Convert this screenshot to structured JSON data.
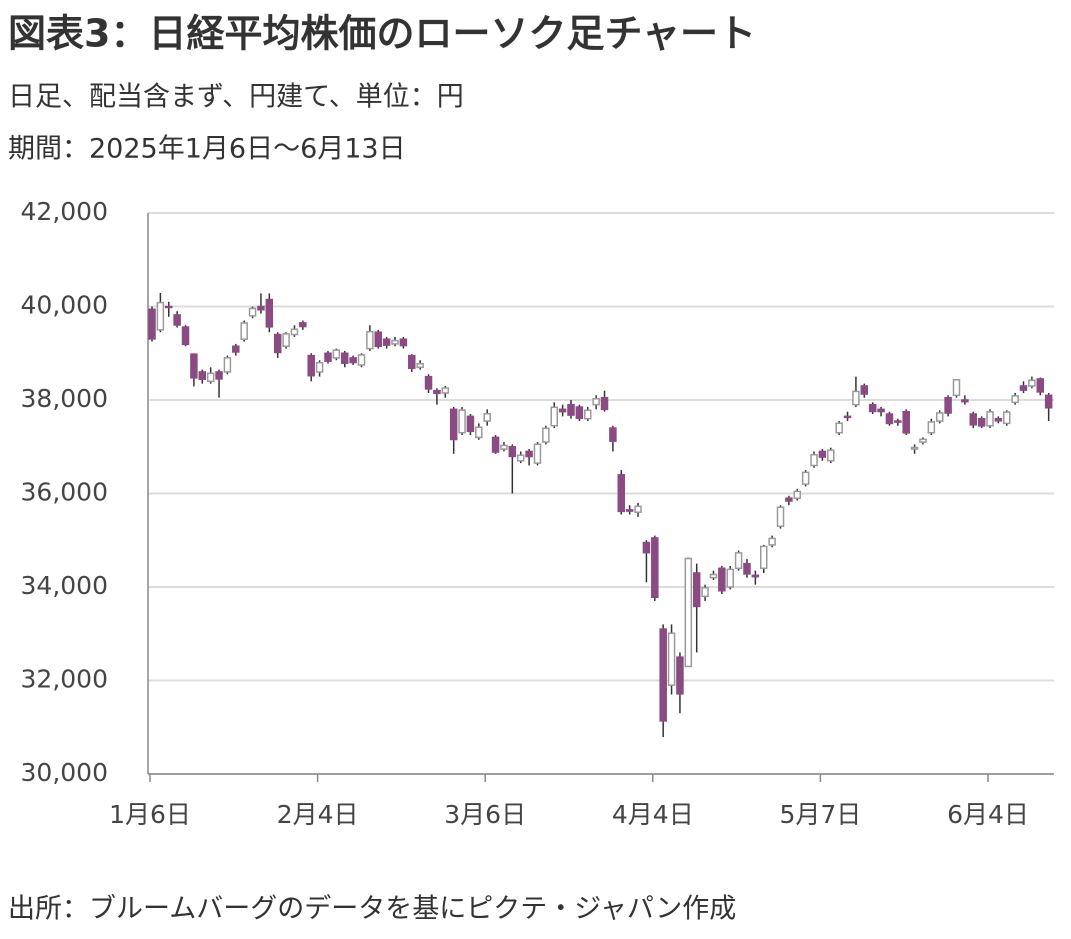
{
  "chart_data": {
    "type": "candlestick",
    "title": "図表3：日経平均株価のローソク足チャート",
    "subtitle": "日足、配当含まず、円建て、単位：円",
    "period": "期間：2025年1月6日～6月13日",
    "source": "出所：ブルームバーグのデータを基にピクテ・ジャパン作成",
    "categories": [
      "1月6日",
      null,
      null,
      null,
      null,
      null,
      null,
      null,
      null,
      null,
      null,
      null,
      null,
      null,
      null,
      null,
      null,
      null,
      null,
      null,
      "2月4日",
      null,
      null,
      null,
      null,
      null,
      null,
      null,
      null,
      null,
      null,
      null,
      null,
      null,
      null,
      null,
      null,
      null,
      null,
      null,
      "3月6日",
      null,
      null,
      null,
      null,
      null,
      null,
      null,
      null,
      null,
      null,
      null,
      null,
      null,
      null,
      null,
      null,
      null,
      null,
      null,
      "4月4日",
      null,
      null,
      null,
      null,
      null,
      null,
      null,
      null,
      null,
      null,
      null,
      null,
      null,
      null,
      null,
      null,
      null,
      null,
      null,
      "5月7日",
      null,
      null,
      null,
      null,
      null,
      null,
      null,
      null,
      null,
      null,
      null,
      null,
      null,
      null,
      null,
      null,
      null,
      null,
      null,
      "6月4日",
      null,
      null,
      null,
      null,
      null,
      null,
      null
    ],
    "open": [
      39940,
      39500,
      40000,
      39820,
      39560,
      38980,
      38600,
      38400,
      38600,
      38600,
      39150,
      39300,
      39800,
      40000,
      40150,
      39400,
      39150,
      39400,
      39650,
      38950,
      38600,
      39000,
      38900,
      39000,
      38900,
      38750,
      39100,
      39450,
      39300,
      39200,
      39300,
      38950,
      38700,
      38500,
      38200,
      38150,
      37800,
      37300,
      37650,
      37200,
      37550,
      37200,
      36950,
      37000,
      36700,
      36900,
      36650,
      37100,
      37450,
      37800,
      37900,
      37850,
      37600,
      37900,
      38050,
      37400,
      36400,
      35650,
      35600,
      34950,
      35050,
      33100,
      31900,
      32500,
      32300,
      34300,
      33800,
      34200,
      34400,
      34000,
      34400,
      34500,
      34250,
      34400,
      34900,
      35300,
      35900,
      35900,
      36200,
      36600,
      36900,
      36700,
      37300,
      37650,
      37900,
      38300,
      37900,
      37800,
      37700,
      37550,
      37750,
      36950,
      37100,
      37300,
      37550,
      38050,
      38100,
      38000,
      37700,
      37600,
      37450,
      37600,
      37500,
      37950,
      38300,
      38300,
      38450,
      38100
    ],
    "high": [
      40000,
      40290,
      40100,
      39900,
      39600,
      39000,
      38650,
      38700,
      38650,
      38950,
      39200,
      39700,
      40000,
      40280,
      40280,
      39450,
      39450,
      39600,
      39700,
      39000,
      38850,
      39050,
      39100,
      39050,
      38950,
      39000,
      39600,
      39500,
      39350,
      39350,
      39350,
      38980,
      38850,
      38550,
      38250,
      38300,
      37850,
      37850,
      37700,
      37500,
      37800,
      37250,
      37100,
      37050,
      36900,
      36950,
      37100,
      37450,
      37950,
      37900,
      38000,
      37900,
      37850,
      38100,
      38200,
      37450,
      36500,
      35750,
      35800,
      35000,
      35100,
      33200,
      33200,
      32600,
      34630,
      34500,
      34050,
      34350,
      34450,
      34450,
      34780,
      34600,
      34350,
      34900,
      35100,
      35750,
      35950,
      36100,
      36500,
      36900,
      36950,
      36980,
      37550,
      37750,
      38500,
      38350,
      37950,
      37850,
      37750,
      37600,
      37800,
      37050,
      37200,
      37600,
      37780,
      38100,
      38450,
      38100,
      37750,
      37650,
      37800,
      37650,
      37780,
      38150,
      38400,
      38500,
      38480,
      38150
    ],
    "low": [
      39250,
      39450,
      39780,
      39550,
      39150,
      38290,
      38350,
      38350,
      38050,
      38550,
      38950,
      39250,
      39750,
      39850,
      39450,
      38900,
      39100,
      39350,
      39500,
      38400,
      38500,
      38780,
      38850,
      38700,
      38750,
      38700,
      39050,
      39100,
      39100,
      39150,
      39100,
      38600,
      38650,
      38150,
      37900,
      38050,
      36850,
      37250,
      37250,
      37150,
      37450,
      36850,
      36900,
      36000,
      36650,
      36600,
      36600,
      37050,
      37400,
      37650,
      37600,
      37550,
      37550,
      37800,
      37750,
      36900,
      35550,
      35550,
      35500,
      34100,
      33700,
      30790,
      31700,
      31300,
      32300,
      32600,
      33700,
      34150,
      33850,
      33950,
      34350,
      34200,
      34050,
      34300,
      34850,
      35250,
      35750,
      35850,
      36150,
      36550,
      36700,
      36650,
      37250,
      37550,
      37850,
      38050,
      37700,
      37650,
      37450,
      37450,
      37250,
      36850,
      37050,
      37250,
      37500,
      37650,
      38050,
      37900,
      37400,
      37400,
      37400,
      37500,
      37450,
      37900,
      38150,
      38250,
      38100,
      37550
    ],
    "close": [
      39307,
      40083,
      39981,
      39605,
      39190,
      38474,
      38444,
      38572,
      38451,
      38902,
      39027,
      39646,
      39958,
      39931,
      39565,
      39016,
      39414,
      39513,
      39572,
      38520,
      38798,
      38831,
      39066,
      38787,
      38801,
      38963,
      39461,
      39149,
      39174,
      39270,
      39164,
      38678,
      38776,
      38237,
      38142,
      38256,
      37155,
      37785,
      37331,
      37418,
      37704,
      36887,
      37028,
      36793,
      36819,
      36790,
      37053,
      37396,
      37845,
      37751,
      37677,
      37608,
      37780,
      38027,
      37799,
      37120,
      35617,
      35624,
      35725,
      34735,
      33780,
      31136,
      33012,
      31714,
      34609,
      33585,
      33982,
      34267,
      33920,
      34377,
      34730,
      34280,
      34220,
      34868,
      35039,
      35705,
      35839,
      36045,
      36452,
      36830,
      36779,
      36928,
      37503,
      37644,
      38183,
      38128,
      37755,
      37753,
      37498,
      37529,
      37298,
      36985,
      37160,
      37531,
      37724,
      37722,
      38432,
      37965,
      37470,
      37446,
      37747,
      37554,
      37741,
      38088,
      38211,
      38421,
      38173,
      37834
    ],
    "up_color": "#ffffff",
    "up_edge_color": "#9a9a9a",
    "down_color": "#8a4a82",
    "wick_color": "#333333",
    "ylim": [
      30000,
      42000
    ],
    "yticks": [
      {
        "value": 30000,
        "label": "30,000"
      },
      {
        "value": 32000,
        "label": "32,000"
      },
      {
        "value": 34000,
        "label": "34,000"
      },
      {
        "value": 36000,
        "label": "36,000"
      },
      {
        "value": 38000,
        "label": "38,000"
      },
      {
        "value": 40000,
        "label": "40,000"
      },
      {
        "value": 42000,
        "label": "42,000"
      }
    ],
    "grid": true
  }
}
